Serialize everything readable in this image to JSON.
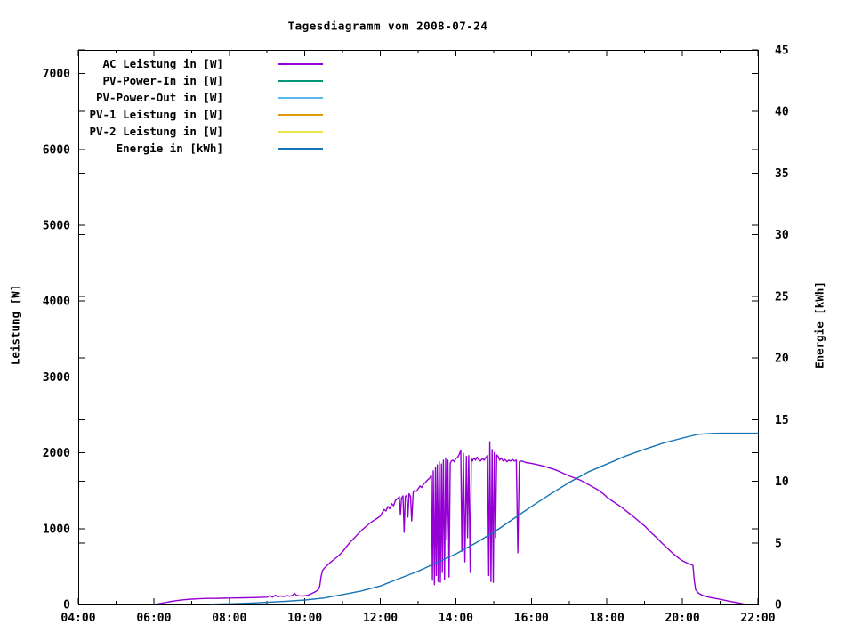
{
  "title": "Tagesdiagramm vom 2008-07-24",
  "axes": {
    "x": {
      "tick_labels": [
        "04:00",
        "06:00",
        "08:00",
        "10:00",
        "12:00",
        "14:00",
        "16:00",
        "18:00",
        "20:00",
        "22:00"
      ],
      "tick_hours": [
        4,
        6,
        8,
        10,
        12,
        14,
        16,
        18,
        20,
        22
      ],
      "minor_hours": [
        5,
        7,
        9,
        11,
        13,
        15,
        17,
        19,
        21
      ],
      "range_hours": [
        4,
        22
      ]
    },
    "y_left": {
      "label": "Leistung [W]",
      "ticks": [
        0,
        1000,
        2000,
        3000,
        4000,
        5000,
        6000,
        7000
      ],
      "range": [
        0,
        7312
      ]
    },
    "y_right": {
      "label": "Energie [kWh]",
      "ticks": [
        0,
        5,
        10,
        15,
        20,
        25,
        30,
        35,
        40,
        45
      ],
      "range": [
        0,
        45
      ]
    }
  },
  "chart_data": {
    "type": "line",
    "title": "Tagesdiagramm vom 2008-07-24",
    "xlabel": "",
    "ylabel_left": "Leistung [W]",
    "ylabel_right": "Energie [kWh]",
    "x_unit": "hour_of_day",
    "grid": false,
    "legend_position": "top-left-inside",
    "series": [
      {
        "name": "AC Leistung in [W]",
        "axis": "left",
        "color": "#9400d3",
        "points": [
          [
            6.08,
            5
          ],
          [
            6.2,
            15
          ],
          [
            6.4,
            35
          ],
          [
            6.6,
            50
          ],
          [
            6.8,
            62
          ],
          [
            7.0,
            70
          ],
          [
            7.2,
            75
          ],
          [
            7.4,
            80
          ],
          [
            7.6,
            80
          ],
          [
            7.8,
            82
          ],
          [
            8.0,
            84
          ],
          [
            8.2,
            86
          ],
          [
            8.4,
            88
          ],
          [
            8.6,
            90
          ],
          [
            8.8,
            93
          ],
          [
            9.0,
            96
          ],
          [
            9.08,
            118
          ],
          [
            9.14,
            96
          ],
          [
            9.22,
            122
          ],
          [
            9.28,
            100
          ],
          [
            9.36,
            112
          ],
          [
            9.44,
            104
          ],
          [
            9.52,
            118
          ],
          [
            9.6,
            108
          ],
          [
            9.68,
            122
          ],
          [
            9.73,
            148
          ],
          [
            9.78,
            120
          ],
          [
            9.86,
            114
          ],
          [
            9.94,
            112
          ],
          [
            10.02,
            115
          ],
          [
            10.1,
            126
          ],
          [
            10.2,
            148
          ],
          [
            10.3,
            172
          ],
          [
            10.37,
            205
          ],
          [
            10.4,
            255
          ],
          [
            10.43,
            370
          ],
          [
            10.47,
            450
          ],
          [
            10.52,
            480
          ],
          [
            10.6,
            520
          ],
          [
            10.7,
            565
          ],
          [
            10.8,
            605
          ],
          [
            10.9,
            645
          ],
          [
            11.0,
            695
          ],
          [
            11.1,
            760
          ],
          [
            11.2,
            822
          ],
          [
            11.3,
            872
          ],
          [
            11.4,
            925
          ],
          [
            11.5,
            975
          ],
          [
            11.6,
            1020
          ],
          [
            11.7,
            1062
          ],
          [
            11.8,
            1100
          ],
          [
            11.9,
            1132
          ],
          [
            12.0,
            1165
          ],
          [
            12.05,
            1212
          ],
          [
            12.1,
            1252
          ],
          [
            12.15,
            1232
          ],
          [
            12.2,
            1292
          ],
          [
            12.25,
            1262
          ],
          [
            12.3,
            1330
          ],
          [
            12.35,
            1302
          ],
          [
            12.4,
            1372
          ],
          [
            12.45,
            1392
          ],
          [
            12.5,
            1422
          ],
          [
            12.53,
            1180
          ],
          [
            12.56,
            1402
          ],
          [
            12.6,
            1432
          ],
          [
            12.63,
            952
          ],
          [
            12.66,
            1422
          ],
          [
            12.7,
            1442
          ],
          [
            12.73,
            1152
          ],
          [
            12.76,
            1462
          ],
          [
            12.8,
            1422
          ],
          [
            12.83,
            1102
          ],
          [
            12.87,
            1482
          ],
          [
            12.9,
            1502
          ],
          [
            12.95,
            1492
          ],
          [
            13.0,
            1522
          ],
          [
            13.05,
            1562
          ],
          [
            13.1,
            1542
          ],
          [
            13.15,
            1592
          ],
          [
            13.2,
            1612
          ],
          [
            13.25,
            1642
          ],
          [
            13.3,
            1662
          ],
          [
            13.35,
            1705
          ],
          [
            13.38,
            320
          ],
          [
            13.4,
            1762
          ],
          [
            13.43,
            262
          ],
          [
            13.46,
            1802
          ],
          [
            13.48,
            382
          ],
          [
            13.51,
            1842
          ],
          [
            13.53,
            302
          ],
          [
            13.56,
            1882
          ],
          [
            13.59,
            292
          ],
          [
            13.62,
            1852
          ],
          [
            13.64,
            422
          ],
          [
            13.67,
            1902
          ],
          [
            13.7,
            332
          ],
          [
            13.73,
            1932
          ],
          [
            13.76,
            852
          ],
          [
            13.79,
            1902
          ],
          [
            13.82,
            362
          ],
          [
            13.85,
            1862
          ],
          [
            13.88,
            1892
          ],
          [
            13.92,
            1902
          ],
          [
            13.96,
            1882
          ],
          [
            14.0,
            1922
          ],
          [
            14.05,
            1942
          ],
          [
            14.1,
            1992
          ],
          [
            14.13,
            2032
          ],
          [
            14.16,
            702
          ],
          [
            14.2,
            1992
          ],
          [
            14.24,
            562
          ],
          [
            14.28,
            1952
          ],
          [
            14.31,
            882
          ],
          [
            14.34,
            1962
          ],
          [
            14.38,
            422
          ],
          [
            14.41,
            1922
          ],
          [
            14.44,
            1892
          ],
          [
            14.48,
            1932
          ],
          [
            14.52,
            1902
          ],
          [
            14.56,
            1942
          ],
          [
            14.6,
            1912
          ],
          [
            14.65,
            1892
          ],
          [
            14.7,
            1922
          ],
          [
            14.75,
            1902
          ],
          [
            14.8,
            1942
          ],
          [
            14.84,
            1962
          ],
          [
            14.87,
            382
          ],
          [
            14.9,
            2145
          ],
          [
            14.93,
            302
          ],
          [
            14.96,
            2042
          ],
          [
            14.99,
            292
          ],
          [
            15.02,
            2002
          ],
          [
            15.05,
            882
          ],
          [
            15.08,
            1972
          ],
          [
            15.12,
            1952
          ],
          [
            15.16,
            1902
          ],
          [
            15.2,
            1932
          ],
          [
            15.25,
            1892
          ],
          [
            15.3,
            1912
          ],
          [
            15.35,
            1882
          ],
          [
            15.4,
            1902
          ],
          [
            15.45,
            1892
          ],
          [
            15.5,
            1912
          ],
          [
            15.55,
            1892
          ],
          [
            15.6,
            1902
          ],
          [
            15.64,
            682
          ],
          [
            15.68,
            1882
          ],
          [
            15.75,
            1892
          ],
          [
            15.85,
            1872
          ],
          [
            16.0,
            1862
          ],
          [
            16.15,
            1845
          ],
          [
            16.3,
            1828
          ],
          [
            16.45,
            1805
          ],
          [
            16.6,
            1782
          ],
          [
            16.75,
            1752
          ],
          [
            16.9,
            1718
          ],
          [
            17.0,
            1695
          ],
          [
            17.15,
            1668
          ],
          [
            17.3,
            1638
          ],
          [
            17.45,
            1598
          ],
          [
            17.6,
            1558
          ],
          [
            17.75,
            1515
          ],
          [
            17.9,
            1462
          ],
          [
            18.0,
            1415
          ],
          [
            18.15,
            1362
          ],
          [
            18.3,
            1312
          ],
          [
            18.45,
            1258
          ],
          [
            18.6,
            1198
          ],
          [
            18.75,
            1138
          ],
          [
            18.9,
            1075
          ],
          [
            19.0,
            1035
          ],
          [
            19.15,
            958
          ],
          [
            19.3,
            888
          ],
          [
            19.45,
            812
          ],
          [
            19.6,
            742
          ],
          [
            19.75,
            672
          ],
          [
            19.9,
            612
          ],
          [
            20.0,
            578
          ],
          [
            20.1,
            552
          ],
          [
            20.2,
            532
          ],
          [
            20.28,
            515
          ],
          [
            20.31,
            332
          ],
          [
            20.35,
            192
          ],
          [
            20.42,
            152
          ],
          [
            20.52,
            122
          ],
          [
            20.65,
            102
          ],
          [
            20.8,
            86
          ],
          [
            21.0,
            68
          ],
          [
            21.15,
            52
          ],
          [
            21.3,
            38
          ],
          [
            21.45,
            24
          ],
          [
            21.55,
            14
          ],
          [
            21.63,
            6
          ]
        ]
      },
      {
        "name": "PV-Power-In in [W]",
        "axis": "left",
        "color": "#009678",
        "points": []
      },
      {
        "name": "PV-Power-Out in [W]",
        "axis": "left",
        "color": "#58b8e8",
        "points": []
      },
      {
        "name": "PV-1 Leistung in [W]",
        "axis": "left",
        "color": "#dd9c0e",
        "points": []
      },
      {
        "name": "PV-2 Leistung in [W]",
        "axis": "left",
        "color": "#ece24a",
        "points": []
      },
      {
        "name": "Energie in [kWh]",
        "axis": "right",
        "color": "#1574b4",
        "points": [
          [
            7.5,
            0.02
          ],
          [
            8.0,
            0.05
          ],
          [
            8.5,
            0.1
          ],
          [
            9.0,
            0.17
          ],
          [
            9.5,
            0.26
          ],
          [
            10.0,
            0.36
          ],
          [
            10.5,
            0.52
          ],
          [
            11.0,
            0.8
          ],
          [
            11.5,
            1.1
          ],
          [
            12.0,
            1.5
          ],
          [
            12.5,
            2.1
          ],
          [
            13.0,
            2.7
          ],
          [
            13.5,
            3.4
          ],
          [
            14.0,
            4.1
          ],
          [
            14.5,
            4.95
          ],
          [
            15.0,
            5.85
          ],
          [
            15.5,
            6.9
          ],
          [
            16.0,
            7.95
          ],
          [
            16.5,
            8.95
          ],
          [
            17.0,
            9.9
          ],
          [
            17.5,
            10.75
          ],
          [
            18.0,
            11.4
          ],
          [
            18.5,
            12.05
          ],
          [
            19.0,
            12.6
          ],
          [
            19.5,
            13.1
          ],
          [
            20.0,
            13.5
          ],
          [
            20.2,
            13.65
          ],
          [
            20.4,
            13.8
          ],
          [
            20.6,
            13.85
          ],
          [
            20.8,
            13.88
          ],
          [
            21.0,
            13.9
          ],
          [
            21.5,
            13.9
          ],
          [
            22.0,
            13.9
          ]
        ]
      }
    ]
  },
  "colors": {
    "background": "#ffffff",
    "axis": "#000000",
    "text": "#000000"
  }
}
